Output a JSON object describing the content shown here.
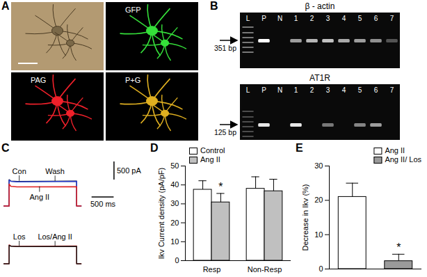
{
  "panels": [
    {
      "label": "A",
      "images": [
        {
          "color": "#b39a72"
        },
        {
          "label": "GFP",
          "color": "#35e03a"
        },
        {
          "label": "PAG",
          "color": "#f0202a"
        },
        {
          "label": "P+G",
          "color": "#e0b020"
        }
      ]
    },
    {
      "label": "B",
      "gels": [
        {
          "title": "β - actin",
          "lanes": [
            "L",
            "P",
            "N",
            "1",
            "2",
            "3",
            "4",
            "5",
            "6",
            "7"
          ],
          "bands": [
            1,
            1,
            0,
            0.6,
            0.7,
            0.75,
            0.65,
            0.6,
            0.55,
            0.3
          ],
          "band_size": "351 bp"
        },
        {
          "title": "AT1R",
          "lanes": [
            "L",
            "P",
            "N",
            "1",
            "2",
            "3",
            "4",
            "5",
            "6",
            "7"
          ],
          "bands": [
            0.6,
            0.9,
            0,
            0.9,
            0,
            0.45,
            0,
            0.5,
            0.6,
            0
          ],
          "band_size": "125 bp"
        }
      ]
    }
  ],
  "chart_data": [
    {
      "type": "line",
      "title": "C",
      "x": [
        0,
        120,
        120,
        160,
        300,
        1650,
        1650,
        1750
      ],
      "series": [
        {
          "name": "Con",
          "color": "#1a1a1a",
          "values": [
            0,
            0,
            730,
            690,
            680,
            690,
            0,
            0
          ]
        },
        {
          "name": "Wash",
          "color": "#2a3fd0",
          "values": [
            0,
            0,
            720,
            685,
            672,
            683,
            0,
            0
          ]
        },
        {
          "name": "Ang II",
          "color": "#e02020",
          "values": [
            0,
            0,
            610,
            545,
            530,
            535,
            0,
            0
          ]
        }
      ],
      "xlim": [
        0,
        2600
      ],
      "ylim": [
        -200,
        1300
      ],
      "tick_labels": false,
      "scale_bars": [
        {
          "axis": "y",
          "value": 500,
          "label": "500 pA"
        },
        {
          "axis": "x",
          "value": 500,
          "label": "500 ms"
        }
      ]
    },
    {
      "type": "line",
      "x": [
        0,
        120,
        120,
        160,
        300,
        1650,
        1650,
        1750
      ],
      "series": [
        {
          "name": "Los",
          "color": "#e02020",
          "values": [
            0,
            0,
            560,
            530,
            520,
            528,
            0,
            0
          ]
        },
        {
          "name": "Los/Ang II",
          "color": "#1a1a1a",
          "values": [
            0,
            0,
            550,
            522,
            515,
            520,
            0,
            0
          ]
        }
      ],
      "xlim": [
        0,
        2600
      ],
      "ylim": [
        -200,
        1300
      ],
      "tick_labels": false
    },
    {
      "type": "bar",
      "title": "D",
      "categories": [
        "Resp",
        "Non-Resp"
      ],
      "series": [
        {
          "name": "Control",
          "color": "#ffffff",
          "values": [
            37.5,
            38
          ],
          "errors": [
            4.7,
            6.3
          ]
        },
        {
          "name": "Ang II",
          "color": "#c0c0c0",
          "values": [
            30.8,
            36.7
          ],
          "errors": [
            4.7,
            6.3
          ]
        }
      ],
      "ylabel": "Ikv Current density (pA/pF)",
      "ylim": [
        0,
        50
      ],
      "yticks": [
        0,
        10,
        20,
        30,
        40,
        50
      ],
      "legend": "top-left",
      "annotations": [
        {
          "text": "*",
          "category": "Resp",
          "series": "Ang II"
        }
      ]
    },
    {
      "type": "bar",
      "title": "E",
      "categories": [
        "Ang II",
        "Ang II/ Los"
      ],
      "values": [
        21,
        2.3
      ],
      "errors": [
        4,
        2
      ],
      "colors": [
        "#ffffff",
        "#9a9a9a"
      ],
      "ylabel": "Decrease in Ikv (%)",
      "ylim": [
        0,
        30
      ],
      "yticks": [
        0,
        10,
        20,
        30
      ],
      "legend": "top-right",
      "tick_labels": "y",
      "annotations": [
        {
          "text": "*",
          "category": "Ang II/ Los"
        }
      ]
    }
  ]
}
